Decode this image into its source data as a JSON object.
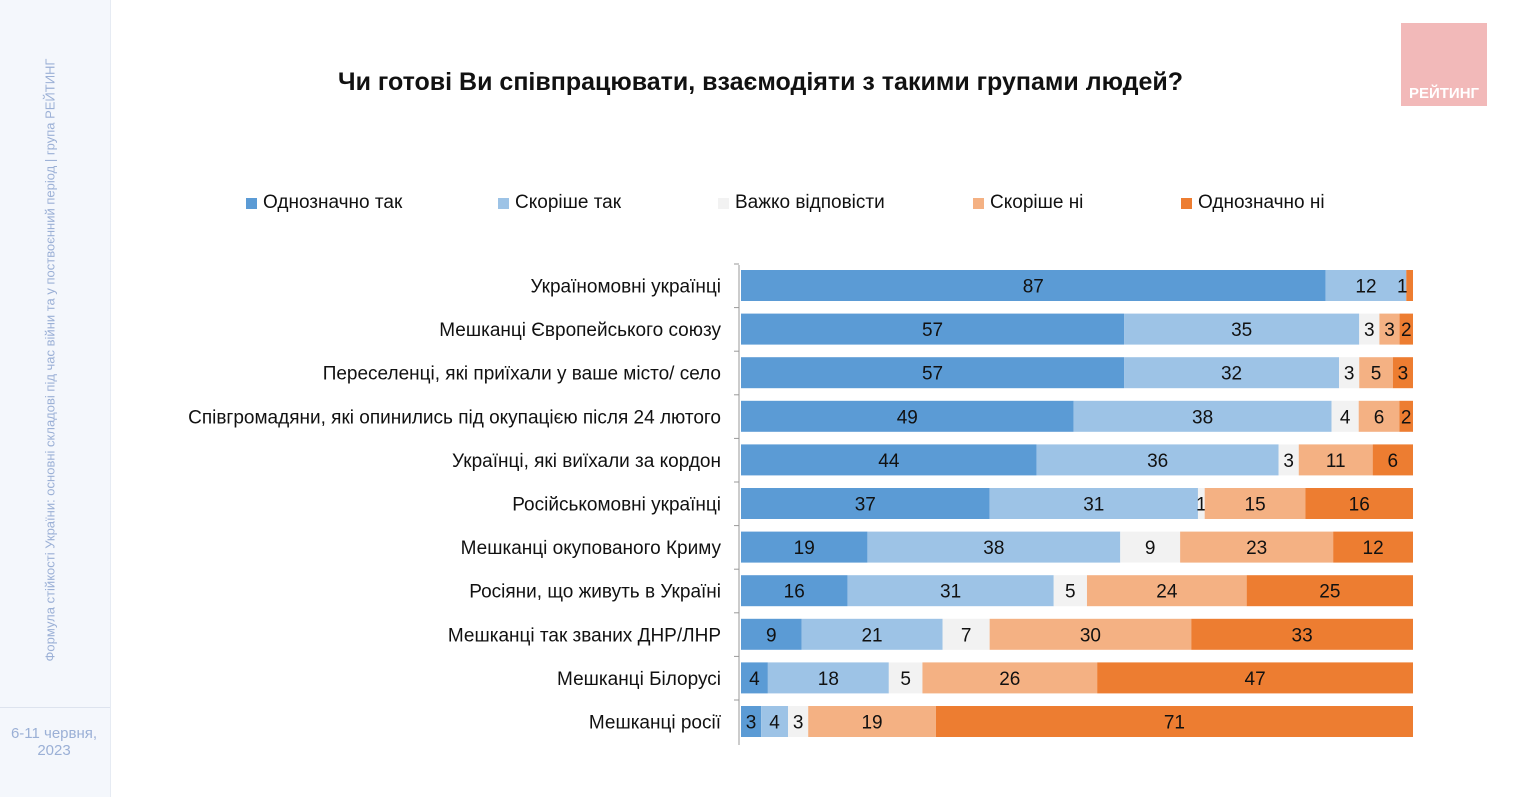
{
  "sidebar": {
    "caption": "Формула стійкості України: основні складові під час війни та у поствоєнний період | група РЕЙТИНГ",
    "date": "6-11 червня, 2023"
  },
  "logo": "РЕЙТИНГ",
  "chart_data": {
    "type": "bar",
    "orientation": "horizontal-stacked-100",
    "title": "Чи готові Ви співпрацювати, взаємодіяти з такими групами людей?",
    "legend_position": "top",
    "categories": [
      "Україномовні українці",
      "Мешканці Європейського союзу",
      "Переселенці, які приїхали у ваше місто/ село",
      "Співгромадяни, які опинились під окупацією після 24 лютого",
      "Українці, які виїхали за кордон",
      "Російськомовні українці",
      "Мешканці окупованого Криму",
      "Росіяни, що живуть в Україні",
      "Мешканці так званих ДНР/ЛНР",
      "Мешканці Білорусі",
      "Мешканці росії"
    ],
    "series": [
      {
        "name": "Однозначно так",
        "color": "#5b9bd5",
        "values": [
          87,
          57,
          57,
          49,
          44,
          37,
          19,
          16,
          9,
          4,
          3
        ]
      },
      {
        "name": "Скоріше так",
        "color": "#9dc3e6",
        "values": [
          12,
          35,
          32,
          38,
          36,
          31,
          38,
          31,
          21,
          18,
          4
        ]
      },
      {
        "name": "Важко відповісти",
        "color": "#f2f2f2",
        "values": [
          0,
          3,
          3,
          4,
          3,
          1,
          9,
          5,
          7,
          5,
          3
        ]
      },
      {
        "name": "Скоріше ні",
        "color": "#f4b183",
        "values": [
          0,
          3,
          5,
          6,
          11,
          15,
          23,
          24,
          30,
          26,
          19
        ]
      },
      {
        "name": "Однозначно ні",
        "color": "#ed7d31",
        "values": [
          1,
          2,
          3,
          2,
          6,
          16,
          12,
          25,
          33,
          47,
          71
        ]
      }
    ]
  }
}
